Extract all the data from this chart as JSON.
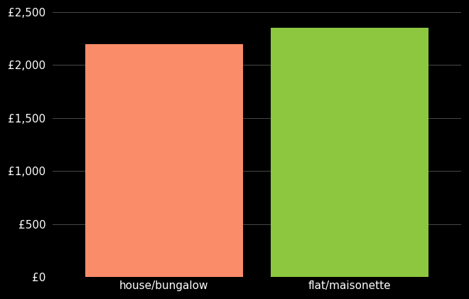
{
  "categories": [
    "house/bungalow",
    "flat/maisonette"
  ],
  "values": [
    2200,
    2350
  ],
  "bar_colors": [
    "#FA8C6A",
    "#8DC63F"
  ],
  "background_color": "#000000",
  "text_color": "#ffffff",
  "grid_color": "#555555",
  "ylim": [
    0,
    2500
  ],
  "yticks": [
    0,
    500,
    1000,
    1500,
    2000,
    2500
  ],
  "bar_width": 0.85,
  "xlabel_fontsize": 11,
  "ytick_fontsize": 11,
  "grid_linewidth": 0.6
}
